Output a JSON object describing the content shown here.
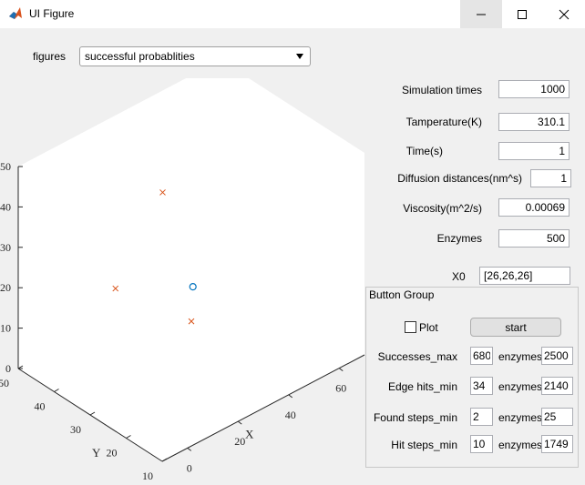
{
  "window": {
    "title": "UI Figure"
  },
  "figures": {
    "label": "figures",
    "selected": "successful probablities"
  },
  "params": [
    {
      "label": "Simulation times",
      "value": "1000"
    },
    {
      "label": "Tamperature(K)",
      "value": "310.1"
    },
    {
      "label": "Time(s)",
      "value": "1"
    },
    {
      "label": "Diffusion distances(nm^s)",
      "value": "1"
    },
    {
      "label": "Viscosity(m^2/s)",
      "value": "0.00069"
    },
    {
      "label": "Enzymes",
      "value": "500"
    },
    {
      "label": "X0",
      "value": "[26,26,26]"
    }
  ],
  "button_group": {
    "title": "Button Group",
    "plot_label": "Plot",
    "plot_checked": false,
    "start_label": "start",
    "rows": [
      {
        "label": "Successes_max",
        "value": "680",
        "enz_label": "enzymes",
        "enz_value": "2500"
      },
      {
        "label": "Edge hits_min",
        "value": "34",
        "enz_label": "enzymes",
        "enz_value": "2140"
      },
      {
        "label": "Found steps_min",
        "value": "2",
        "enz_label": "enzymes",
        "enz_value": "25"
      },
      {
        "label": "Hit steps_min",
        "value": "10",
        "enz_label": "enzymes",
        "enz_value": "1749"
      }
    ]
  },
  "chart_data": {
    "type": "scatter",
    "view": "3d",
    "xlabel": "X",
    "ylabel": "Y",
    "zlabel": "",
    "x_ticks": [
      "0",
      "20",
      "40",
      "60"
    ],
    "y_ticks": [
      "10",
      "20",
      "30",
      "40",
      "50"
    ],
    "z_ticks": [
      "0",
      "10",
      "20",
      "30",
      "40",
      "50"
    ],
    "xlim": [
      -10,
      70
    ],
    "ylim": [
      10,
      50
    ],
    "zlim": [
      0,
      50
    ],
    "series": [
      {
        "marker": "x",
        "color": "#d95319",
        "points": [
          {
            "x": 0,
            "y": 30,
            "z": 28
          },
          {
            "x": 40,
            "y": 45,
            "z": 30
          },
          {
            "x": 30,
            "y": 30,
            "z": 10
          }
        ]
      },
      {
        "marker": "o",
        "color": "#0072bd",
        "points": [
          {
            "x": 42,
            "y": 38,
            "z": 10
          }
        ]
      }
    ]
  }
}
